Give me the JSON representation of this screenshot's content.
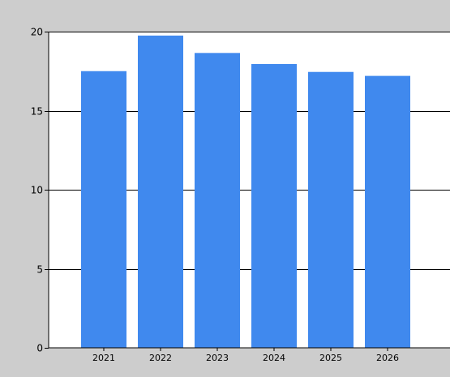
{
  "colors": {
    "background": "#cdcdcd",
    "plot_area": "#ffffff",
    "bar": "#4089ee",
    "grid": "#000000"
  },
  "chart_data": {
    "type": "bar",
    "categories": [
      "2021",
      "2022",
      "2023",
      "2024",
      "2025",
      "2026"
    ],
    "values": [
      17.5,
      19.75,
      18.65,
      17.95,
      17.45,
      17.2
    ],
    "ylim": [
      0,
      20
    ],
    "yticks": [
      0,
      5,
      10,
      15,
      20
    ],
    "ytick_labels": [
      "0",
      "5",
      "10",
      "15",
      "20"
    ],
    "grid": true,
    "title": "",
    "xlabel": "",
    "ylabel": ""
  }
}
